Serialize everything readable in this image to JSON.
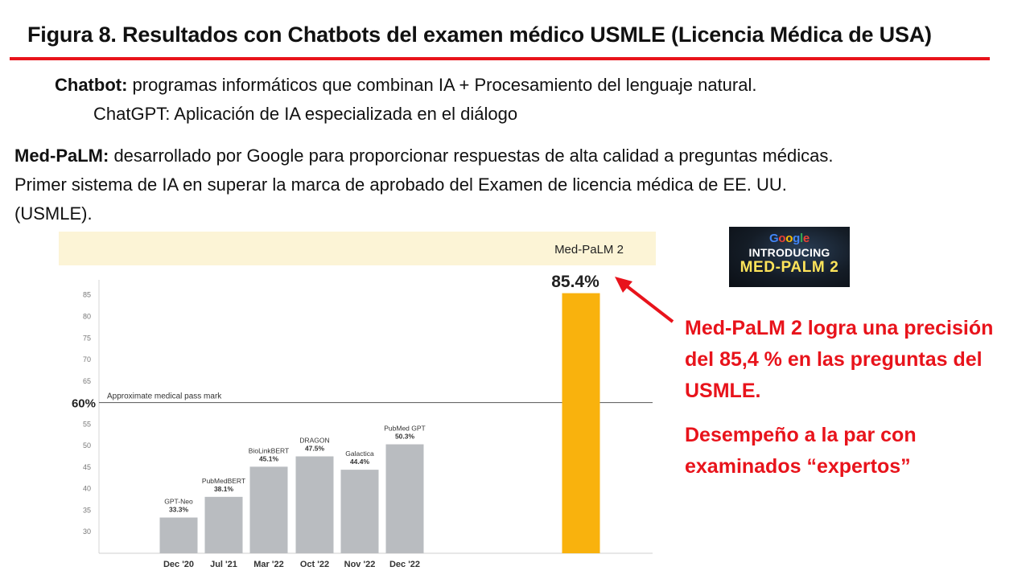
{
  "title": "Figura 8. Resultados con Chatbots del examen médico USMLE (Licencia Médica de USA)",
  "text": {
    "l1_bold": "Chatbot:",
    "l1_rest": " programas informáticos que combinan IA + Procesamiento del lenguaje natural.",
    "l2": "ChatGPT: Aplicación de IA especializada en el diálogo",
    "l3_bold": "Med-PaLM:",
    "l3_rest": " desarrollado por Google para proporcionar respuestas de alta calidad a preguntas médicas.",
    "l4": "Primer sistema de IA en superar la marca de aprobado del Examen de licencia médica de EE. UU.",
    "l5": "(USMLE)."
  },
  "badge": {
    "brand": "Google",
    "line1": "INTRODUCING",
    "line2": "MED-PALM 2"
  },
  "callout": {
    "line1": "Med-PaLM 2 logra una precisión del 85,4 % en las preguntas del USMLE.",
    "line2": "Desempeño a la par con examinados “expertos”"
  },
  "colors": {
    "accent_red": "#e8131b",
    "bar_gray": "#b9bcc0",
    "bar_highlight": "#f9b20d",
    "header_band": "#fcf4d6"
  },
  "chart_data": {
    "type": "bar",
    "categories": [
      "Dec '20",
      "Jul '21",
      "Mar '22",
      "Oct '22",
      "Nov '22",
      "Dec '22",
      ""
    ],
    "labels": [
      "GPT-Neo",
      "PubMedBERT",
      "BioLinkBERT",
      "DRAGON",
      "Galactica",
      "PubMed GPT",
      "Med-PaLM 2"
    ],
    "value_labels": [
      "33.3%",
      "38.1%",
      "45.1%",
      "47.5%",
      "44.4%",
      "50.3%",
      "85.4%"
    ],
    "values": [
      33.3,
      38.1,
      45.1,
      47.5,
      44.4,
      50.3,
      85.4
    ],
    "ylim": [
      25,
      87
    ],
    "yticks": [
      30,
      35,
      40,
      45,
      50,
      55,
      60,
      65,
      70,
      75,
      80,
      85
    ],
    "pass_mark": {
      "value": 60,
      "label": "Approximate medical pass mark",
      "tick_label": "60%"
    },
    "highlight": {
      "name": "Med-PaLM 2",
      "value_label": "85.4%"
    },
    "grid": false,
    "legend": "none"
  }
}
